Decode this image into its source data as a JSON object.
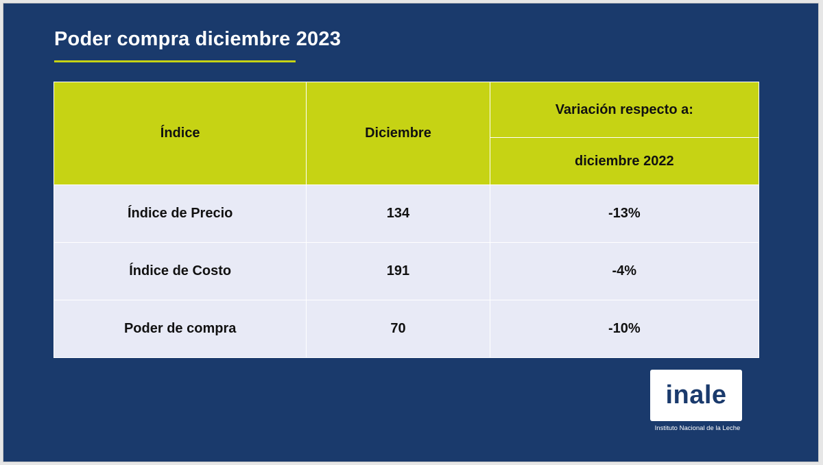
{
  "title": "Poder compra diciembre 2023",
  "colors": {
    "background": "#1a3a6c",
    "accent": "#c6d314",
    "row_fill": "#e8eaf6"
  },
  "table": {
    "headers": {
      "index": "Índice",
      "december": "Diciembre",
      "variation": "Variación respecto a:",
      "variation_sub": "diciembre 2022"
    },
    "rows": [
      {
        "label": "Índice de Precio",
        "value": "134",
        "variation": "-13%"
      },
      {
        "label": "Índice de Costo",
        "value": "191",
        "variation": "-4%"
      },
      {
        "label": "Poder de compra",
        "value": "70",
        "variation": "-10%"
      }
    ]
  },
  "logo": {
    "name": "inale",
    "caption": "Instituto Nacional de la Leche"
  }
}
